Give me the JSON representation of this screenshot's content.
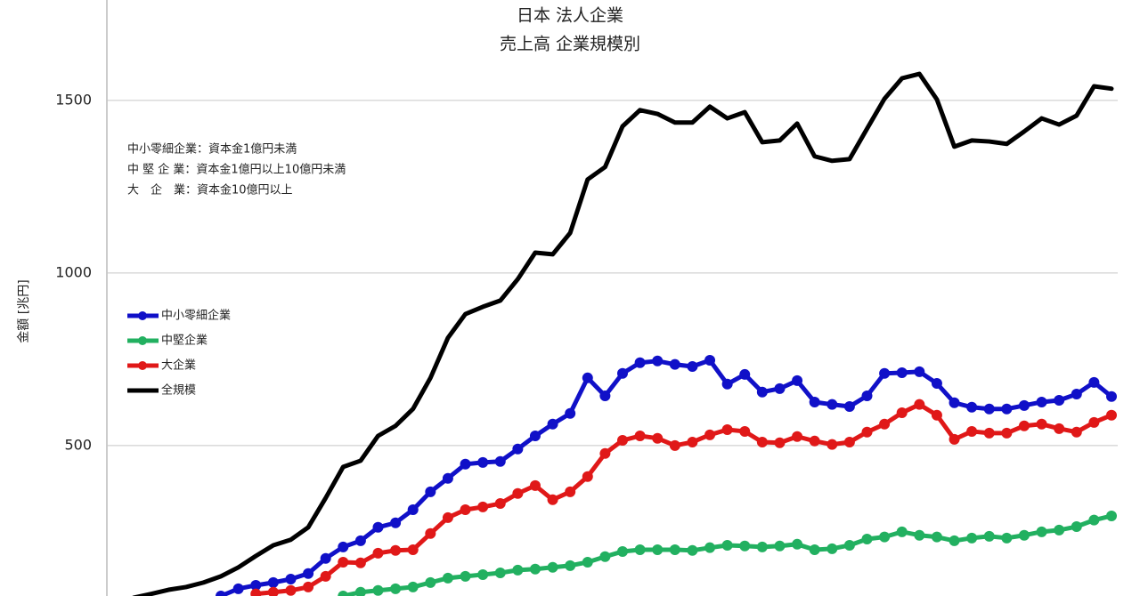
{
  "chart_data": {
    "type": "line",
    "title": [
      "日本 法人企業",
      "売上高 企業規模別"
    ],
    "y_label": "金額 [兆円]",
    "notes": [
      "中小零細企業：資本金1億円未満",
      "中 堅 企 業：資本金1億円以上10億円未満",
      "大　企　業：資本金10億円以上"
    ],
    "categories": [
      null,
      null,
      null,
      null,
      null,
      null,
      null,
      null,
      null,
      null,
      null,
      null,
      null,
      null,
      null,
      null,
      null,
      null,
      null,
      null,
      null,
      null,
      null,
      null,
      null,
      null,
      null,
      null,
      null,
      null,
      null,
      null,
      null,
      null,
      null,
      null,
      null,
      null,
      null,
      null,
      null,
      null,
      null,
      null,
      null,
      null,
      null,
      null,
      null,
      null,
      null,
      null,
      null,
      null,
      null,
      null,
      null
    ],
    "ylim": [
      64,
      1791
    ],
    "yticks": [
      500,
      1000,
      1500
    ],
    "grid": true,
    "series": [
      {
        "name": "中小零細企業",
        "color": "#1010c8",
        "markers": true,
        "values": [
          null,
          null,
          null,
          null,
          null,
          64,
          85,
          95,
          103,
          113,
          129,
          173,
          206,
          224,
          263,
          276,
          314,
          366,
          405,
          446,
          451,
          454,
          490,
          528,
          562,
          593,
          696,
          644,
          709,
          740,
          745,
          735,
          729,
          747,
          678,
          706,
          655,
          665,
          688,
          626,
          619,
          613,
          644,
          709,
          711,
          714,
          680,
          624,
          611,
          606,
          606,
          616,
          626,
          631,
          649,
          683,
          642
        ]
      },
      {
        "name": "中堅企業",
        "color": "#22b060",
        "markers": true,
        "values": [
          null,
          null,
          null,
          null,
          null,
          null,
          null,
          null,
          null,
          null,
          null,
          null,
          64,
          75,
          80,
          85,
          90,
          103,
          116,
          121,
          126,
          131,
          139,
          142,
          147,
          152,
          162,
          178,
          193,
          198,
          198,
          198,
          196,
          204,
          211,
          209,
          206,
          209,
          214,
          198,
          201,
          211,
          229,
          235,
          250,
          240,
          235,
          224,
          232,
          237,
          232,
          240,
          250,
          255,
          265,
          284,
          296
        ]
      },
      {
        "name": "大企業",
        "color": "#e01818",
        "markers": true,
        "values": [
          null,
          null,
          null,
          null,
          null,
          null,
          null,
          70,
          75,
          80,
          90,
          121,
          162,
          160,
          188,
          196,
          198,
          245,
          291,
          314,
          322,
          332,
          361,
          384,
          343,
          366,
          410,
          477,
          515,
          528,
          521,
          500,
          510,
          531,
          546,
          541,
          510,
          508,
          526,
          513,
          503,
          510,
          539,
          562,
          595,
          619,
          588,
          518,
          541,
          536,
          536,
          557,
          562,
          549,
          539,
          567,
          588
        ]
      },
      {
        "name": "全規模",
        "color": "#000000",
        "markers": false,
        "values": [
          59,
          70,
          82,
          90,
          103,
          121,
          147,
          180,
          211,
          227,
          263,
          348,
          438,
          456,
          528,
          557,
          606,
          696,
          812,
          881,
          902,
          920,
          982,
          1059,
          1054,
          1116,
          1271,
          1307,
          1425,
          1472,
          1461,
          1436,
          1436,
          1482,
          1448,
          1466,
          1379,
          1384,
          1433,
          1338,
          1325,
          1330,
          1418,
          1505,
          1564,
          1577,
          1503,
          1366,
          1384,
          1381,
          1374,
          1410,
          1448,
          1430,
          1456,
          1541,
          1534
        ]
      }
    ]
  }
}
